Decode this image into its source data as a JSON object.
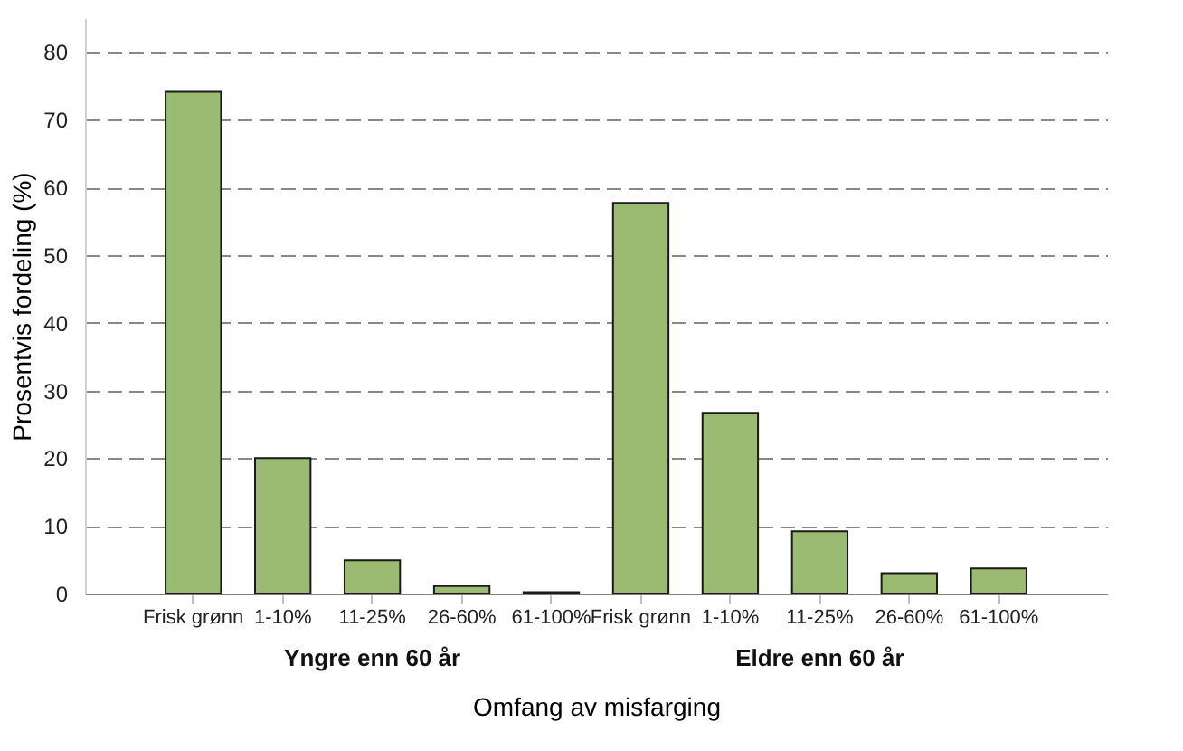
{
  "chart_data": {
    "type": "bar",
    "categories": [
      "Frisk grønn",
      "1-10%",
      "11-25%",
      "26-60%",
      "61-100%",
      "Frisk grønn",
      "1-10%",
      "11-25%",
      "26-60%",
      "61-100%"
    ],
    "values": [
      74.1,
      20,
      4.9,
      1.1,
      0.2,
      57.7,
      26.7,
      9.2,
      3.0,
      3.7
    ],
    "color": "#9bbb73",
    "xlabel": "Omfang av misfarging",
    "ylabel": "Prosentvis fordeling (%)",
    "ylim": [
      0,
      85
    ],
    "yticks": [
      0,
      10,
      20,
      30,
      40,
      50,
      60,
      70,
      80
    ],
    "grid": "y",
    "annotations": [
      "Yngre enn 60 år",
      "Eldre enn 60 år"
    ]
  }
}
